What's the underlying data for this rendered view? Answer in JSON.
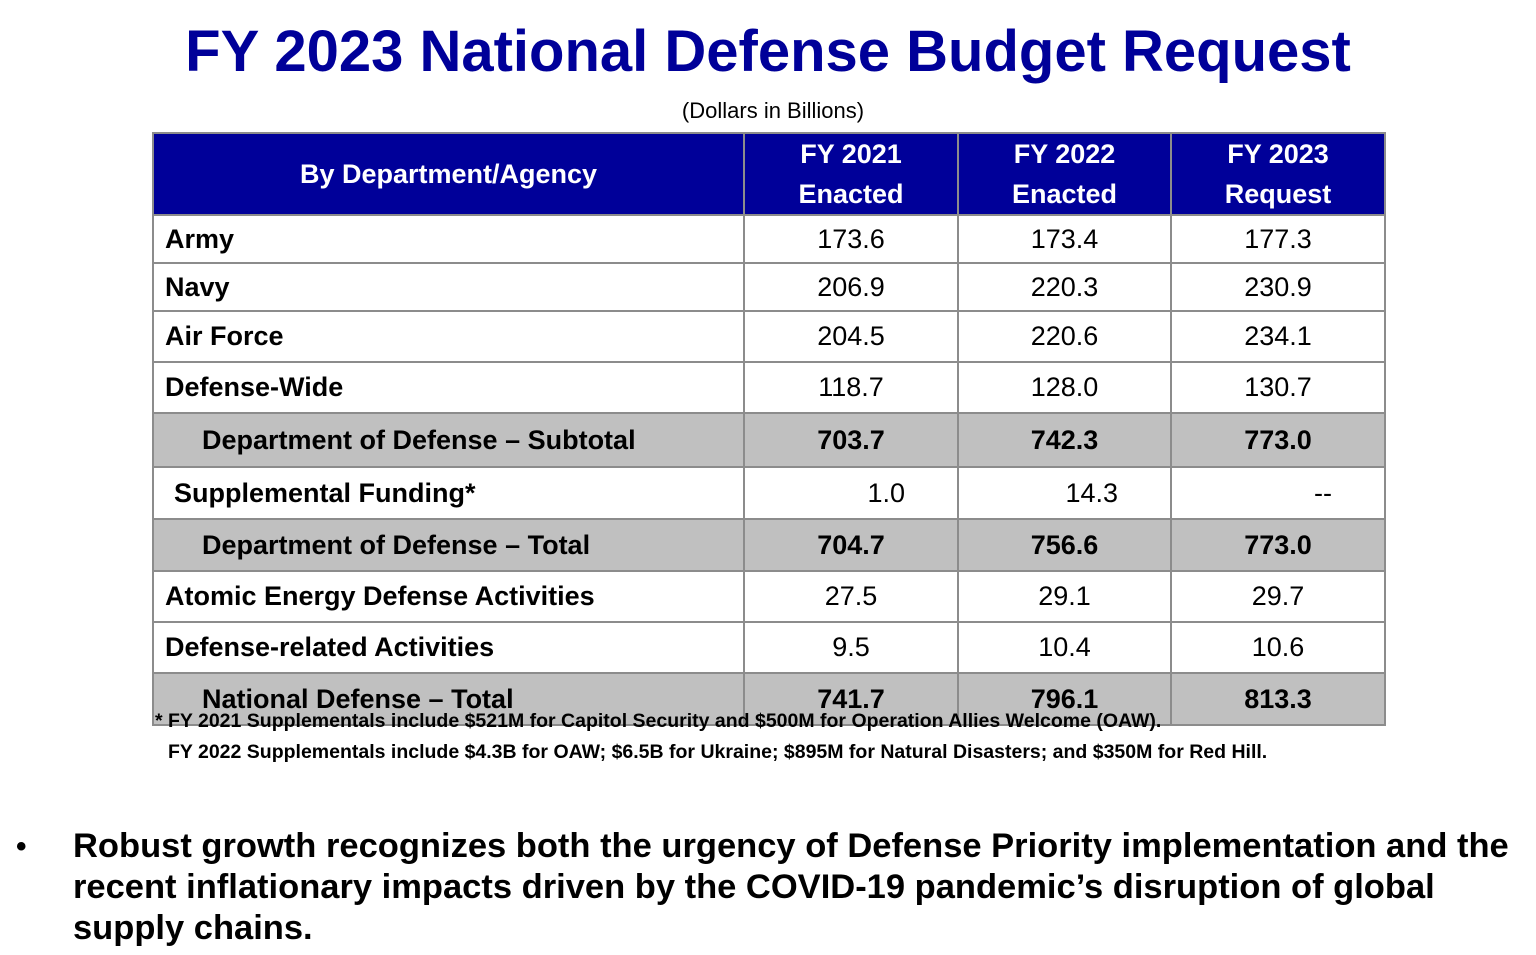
{
  "title": "FY 2023 National Defense Budget Request",
  "subtitle": "(Dollars in Billions)",
  "colors": {
    "title": "#000099",
    "header_bg": "#000099",
    "header_text": "#ffffff",
    "shaded_row": "#c0c0c0",
    "border": "#8c8c8c"
  },
  "table": {
    "headers": [
      {
        "line1": "By Department/Agency",
        "line2": ""
      },
      {
        "line1": "FY 2021",
        "line2": "Enacted"
      },
      {
        "line1": "FY 2022",
        "line2": "Enacted"
      },
      {
        "line1": "FY 2023",
        "line2": "Request"
      }
    ],
    "rows": [
      {
        "label": "Army",
        "values": [
          "173.6",
          "173.4",
          "177.3"
        ],
        "type": "normal"
      },
      {
        "label": "Navy",
        "values": [
          "206.9",
          "220.3",
          "230.9"
        ],
        "type": "normal"
      },
      {
        "label": "Air Force",
        "values": [
          "204.5",
          "220.6",
          "234.1"
        ],
        "type": "normal"
      },
      {
        "label": "Defense-Wide",
        "values": [
          "118.7",
          "128.0",
          "130.7"
        ],
        "type": "normal"
      },
      {
        "label": "Department of Defense – Subtotal",
        "values": [
          "703.7",
          "742.3",
          "773.0"
        ],
        "type": "subtotal"
      },
      {
        "label": "Supplemental Funding*",
        "values": [
          "1.0",
          "14.3",
          "--"
        ],
        "type": "indent"
      },
      {
        "label": "Department of Defense – Total",
        "values": [
          "704.7",
          "756.6",
          "773.0"
        ],
        "type": "subtotal"
      },
      {
        "label": "Atomic Energy Defense Activities",
        "values": [
          "27.5",
          "29.1",
          "29.7"
        ],
        "type": "normal"
      },
      {
        "label": "Defense-related Activities",
        "values": [
          "9.5",
          "10.4",
          "10.6"
        ],
        "type": "normal"
      },
      {
        "label": "National Defense – Total",
        "values": [
          "741.7",
          "796.1",
          "813.3"
        ],
        "type": "subtotal"
      }
    ]
  },
  "footnotes": [
    "* FY 2021 Supplementals include $521M for Capitol Security and $500M for Operation Allies Welcome (OAW).",
    "FY 2022 Supplementals include $4.3B for OAW; $6.5B for Ukraine; $895M for Natural Disasters; and $350M for Red Hill."
  ],
  "bullet": {
    "marker": "•",
    "text": "Robust growth recognizes both the urgency of Defense Priority implementation and the recent inflationary impacts driven by the COVID-19 pandemic’s disruption of global supply chains."
  }
}
